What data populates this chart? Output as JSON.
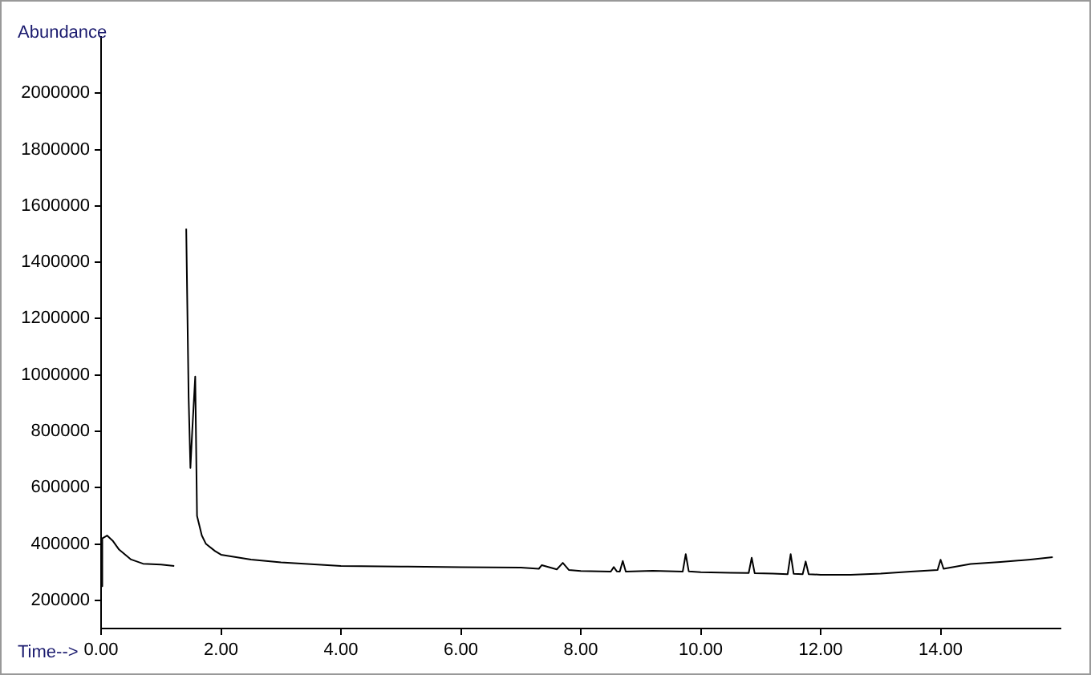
{
  "chart_data": {
    "type": "line",
    "xlabel": "Time-->",
    "ylabel": "Abundance",
    "x": [
      0,
      0.02,
      0.1,
      0.2,
      0.3,
      0.5,
      0.7,
      1.0,
      1.22,
      1.23,
      1.41,
      1.42,
      1.46,
      1.49,
      1.52,
      1.57,
      1.6,
      1.68,
      1.75,
      1.9,
      2.0,
      2.5,
      3.0,
      4.0,
      5.0,
      6.0,
      7.0,
      7.3,
      7.35,
      7.6,
      7.7,
      7.8,
      8.0,
      8.5,
      8.55,
      8.6,
      8.65,
      8.7,
      8.75,
      9.2,
      9.7,
      9.75,
      9.8,
      10.0,
      10.5,
      10.8,
      10.85,
      10.9,
      11.2,
      11.45,
      11.5,
      11.55,
      11.7,
      11.75,
      11.8,
      12.0,
      12.5,
      13.0,
      13.5,
      13.95,
      14.0,
      14.05,
      14.5,
      15.0,
      15.5,
      15.87
    ],
    "values": [
      250000,
      420000,
      430000,
      410000,
      380000,
      345000,
      330000,
      327000,
      322000,
      null,
      null,
      1519000,
      921000,
      670000,
      800000,
      994000,
      500000,
      430000,
      400000,
      375000,
      362000,
      345000,
      335000,
      322000,
      320000,
      318000,
      316000,
      312000,
      325000,
      310000,
      333000,
      308000,
      304000,
      302000,
      318000,
      303000,
      302000,
      340000,
      302000,
      305000,
      302000,
      364000,
      303000,
      300000,
      298000,
      297000,
      351000,
      296000,
      295000,
      293000,
      364000,
      294000,
      293000,
      338000,
      293000,
      291000,
      291000,
      295000,
      302000,
      308000,
      344000,
      312000,
      329000,
      336000,
      345000,
      353000
    ],
    "color": "#000000",
    "xlim": [
      0,
      16
    ],
    "ylim": [
      100000,
      2200000
    ],
    "xticks": [
      {
        "value": 0,
        "label": "0.00"
      },
      {
        "value": 2,
        "label": "2.00"
      },
      {
        "value": 4,
        "label": "4.00"
      },
      {
        "value": 6,
        "label": "6.00"
      },
      {
        "value": 8,
        "label": "8.00"
      },
      {
        "value": 10,
        "label": "10.00"
      },
      {
        "value": 12,
        "label": "12.00"
      },
      {
        "value": 14,
        "label": "14.00"
      }
    ],
    "yticks": [
      200000,
      400000,
      600000,
      800000,
      1000000,
      1200000,
      1400000,
      1600000,
      1800000,
      2000000
    ],
    "grid": false,
    "legend": false,
    "marker": "none",
    "line_style": "solid"
  }
}
